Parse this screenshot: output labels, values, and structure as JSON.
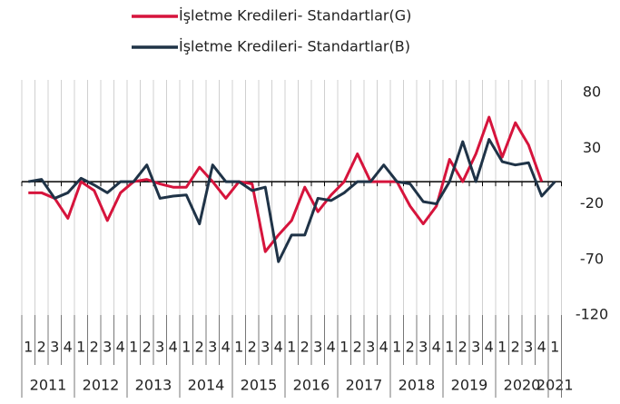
{
  "chart_data": {
    "type": "line",
    "categories": [
      "1",
      "2",
      "3",
      "4",
      "1",
      "2",
      "3",
      "4",
      "1",
      "2",
      "3",
      "4",
      "1",
      "2",
      "3",
      "4",
      "1",
      "2",
      "3",
      "4",
      "1",
      "2",
      "3",
      "4",
      "1",
      "2",
      "3",
      "4",
      "1",
      "2",
      "3",
      "4",
      "1",
      "2",
      "3",
      "4",
      "1",
      "2",
      "3",
      "4",
      "1"
    ],
    "years": [
      "2011",
      "2012",
      "2013",
      "2014",
      "2015",
      "2016",
      "2017",
      "2018",
      "2019",
      "2020",
      "2021"
    ],
    "series": [
      {
        "name": "İşletme Kredileri- Standartlar(G)",
        "color": "#d6143c",
        "values": [
          -10,
          -10,
          -15,
          -33,
          0,
          -8,
          -35,
          -10,
          0,
          2,
          -2,
          -5,
          -5,
          13,
          0,
          -15,
          0,
          -2,
          -63,
          -48,
          -35,
          -5,
          -27,
          -12,
          0,
          25,
          0,
          0,
          0,
          -22,
          -38,
          -22,
          20,
          0,
          25,
          58,
          22,
          53,
          33,
          0,
          null
        ]
      },
      {
        "name": "İşletme Kredileri- Standartlar(B)",
        "color": "#1f3347",
        "values": [
          0,
          2,
          -15,
          -10,
          3,
          -3,
          -10,
          0,
          0,
          15,
          -15,
          -13,
          -12,
          -38,
          15,
          0,
          0,
          -8,
          -5,
          -72,
          -48,
          -48,
          -15,
          -17,
          -10,
          0,
          0,
          15,
          0,
          -2,
          -18,
          -20,
          0,
          36,
          0,
          38,
          18,
          15,
          17,
          -13,
          0
        ]
      }
    ],
    "ylim": [
      -120,
      85
    ],
    "yticks": [
      80,
      30,
      -20,
      -70,
      -120
    ],
    "grid": true
  }
}
